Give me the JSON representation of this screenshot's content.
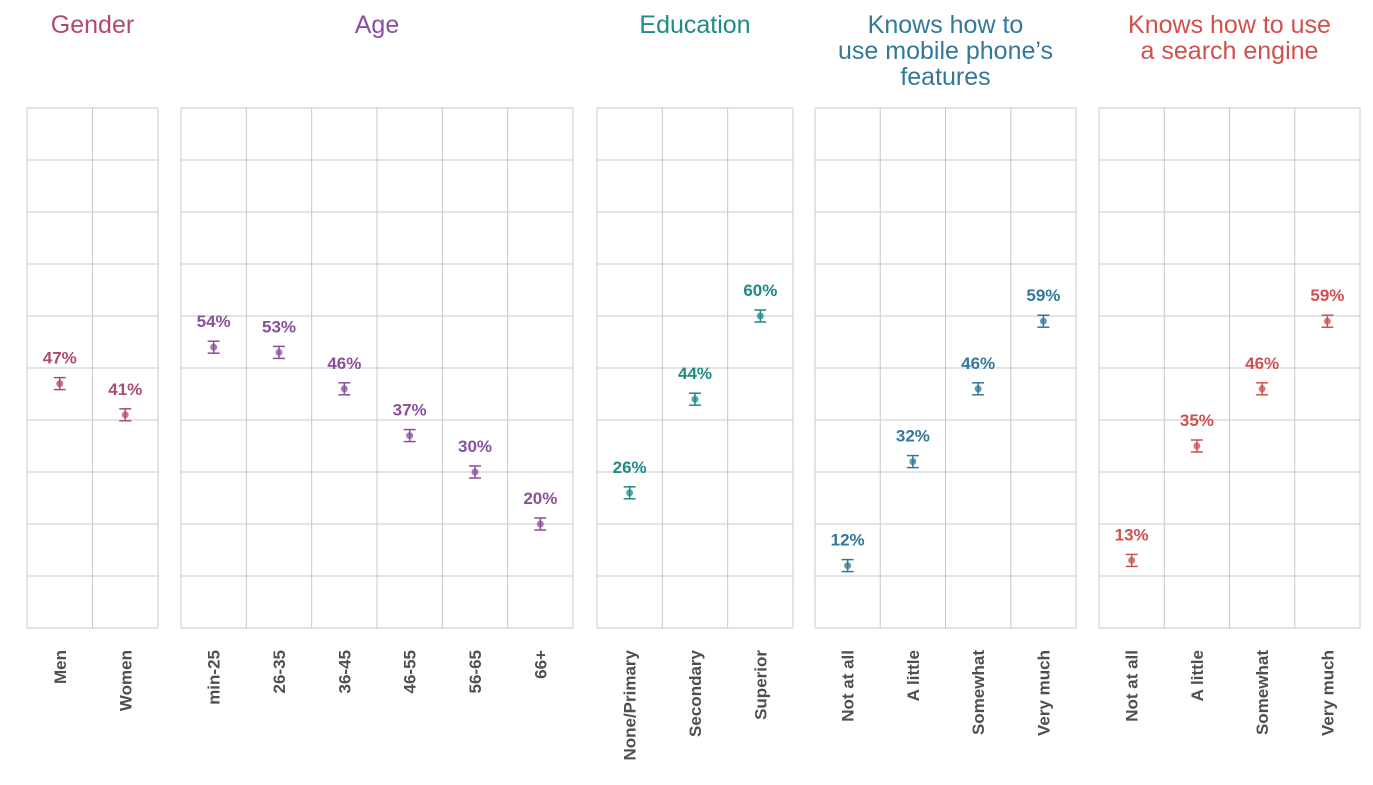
{
  "chart_data": [
    {
      "type": "scatter",
      "title": "Gender",
      "color": "#b04a72",
      "categories": [
        "Men",
        "Women"
      ],
      "values": [
        47,
        41
      ],
      "value_labels": [
        "47%",
        "41%"
      ],
      "ylim": [
        0,
        100
      ],
      "grid": true,
      "error_bars": true
    },
    {
      "type": "scatter",
      "title": "Age",
      "color": "#8a4f9e",
      "categories": [
        "min-25",
        "26-35",
        "36-45",
        "46-55",
        "56-65",
        "66+"
      ],
      "values": [
        54,
        53,
        46,
        37,
        30,
        20
      ],
      "value_labels": [
        "54%",
        "53%",
        "46%",
        "37%",
        "30%",
        "20%"
      ],
      "ylim": [
        0,
        100
      ],
      "grid": true,
      "error_bars": true
    },
    {
      "type": "scatter",
      "title": "Education",
      "color": "#1f8a86",
      "categories": [
        "None/Primary",
        "Secondary",
        "Superior"
      ],
      "values": [
        26,
        44,
        60
      ],
      "value_labels": [
        "26%",
        "44%",
        "60%"
      ],
      "ylim": [
        0,
        100
      ],
      "grid": true,
      "error_bars": true
    },
    {
      "type": "scatter",
      "title": "Knows how to use mobile phone’s features",
      "title_lines": [
        "Knows how to",
        "use mobile phone’s",
        "features"
      ],
      "color": "#33789a",
      "categories": [
        "Not at all",
        "A little",
        "Somewhat",
        "Very much"
      ],
      "values": [
        12,
        32,
        46,
        59
      ],
      "value_labels": [
        "12%",
        "32%",
        "46%",
        "59%"
      ],
      "ylim": [
        0,
        100
      ],
      "grid": true,
      "error_bars": true
    },
    {
      "type": "scatter",
      "title": "Knows how to use a search engine",
      "title_lines": [
        "Knows how to use",
        "a search engine"
      ],
      "color": "#d0504e",
      "categories": [
        "Not at all",
        "A little",
        "Somewhat",
        "Very much"
      ],
      "values": [
        13,
        35,
        46,
        59
      ],
      "value_labels": [
        "13%",
        "35%",
        "46%",
        "59%"
      ],
      "ylim": [
        0,
        100
      ],
      "grid": true,
      "error_bars": true
    }
  ]
}
